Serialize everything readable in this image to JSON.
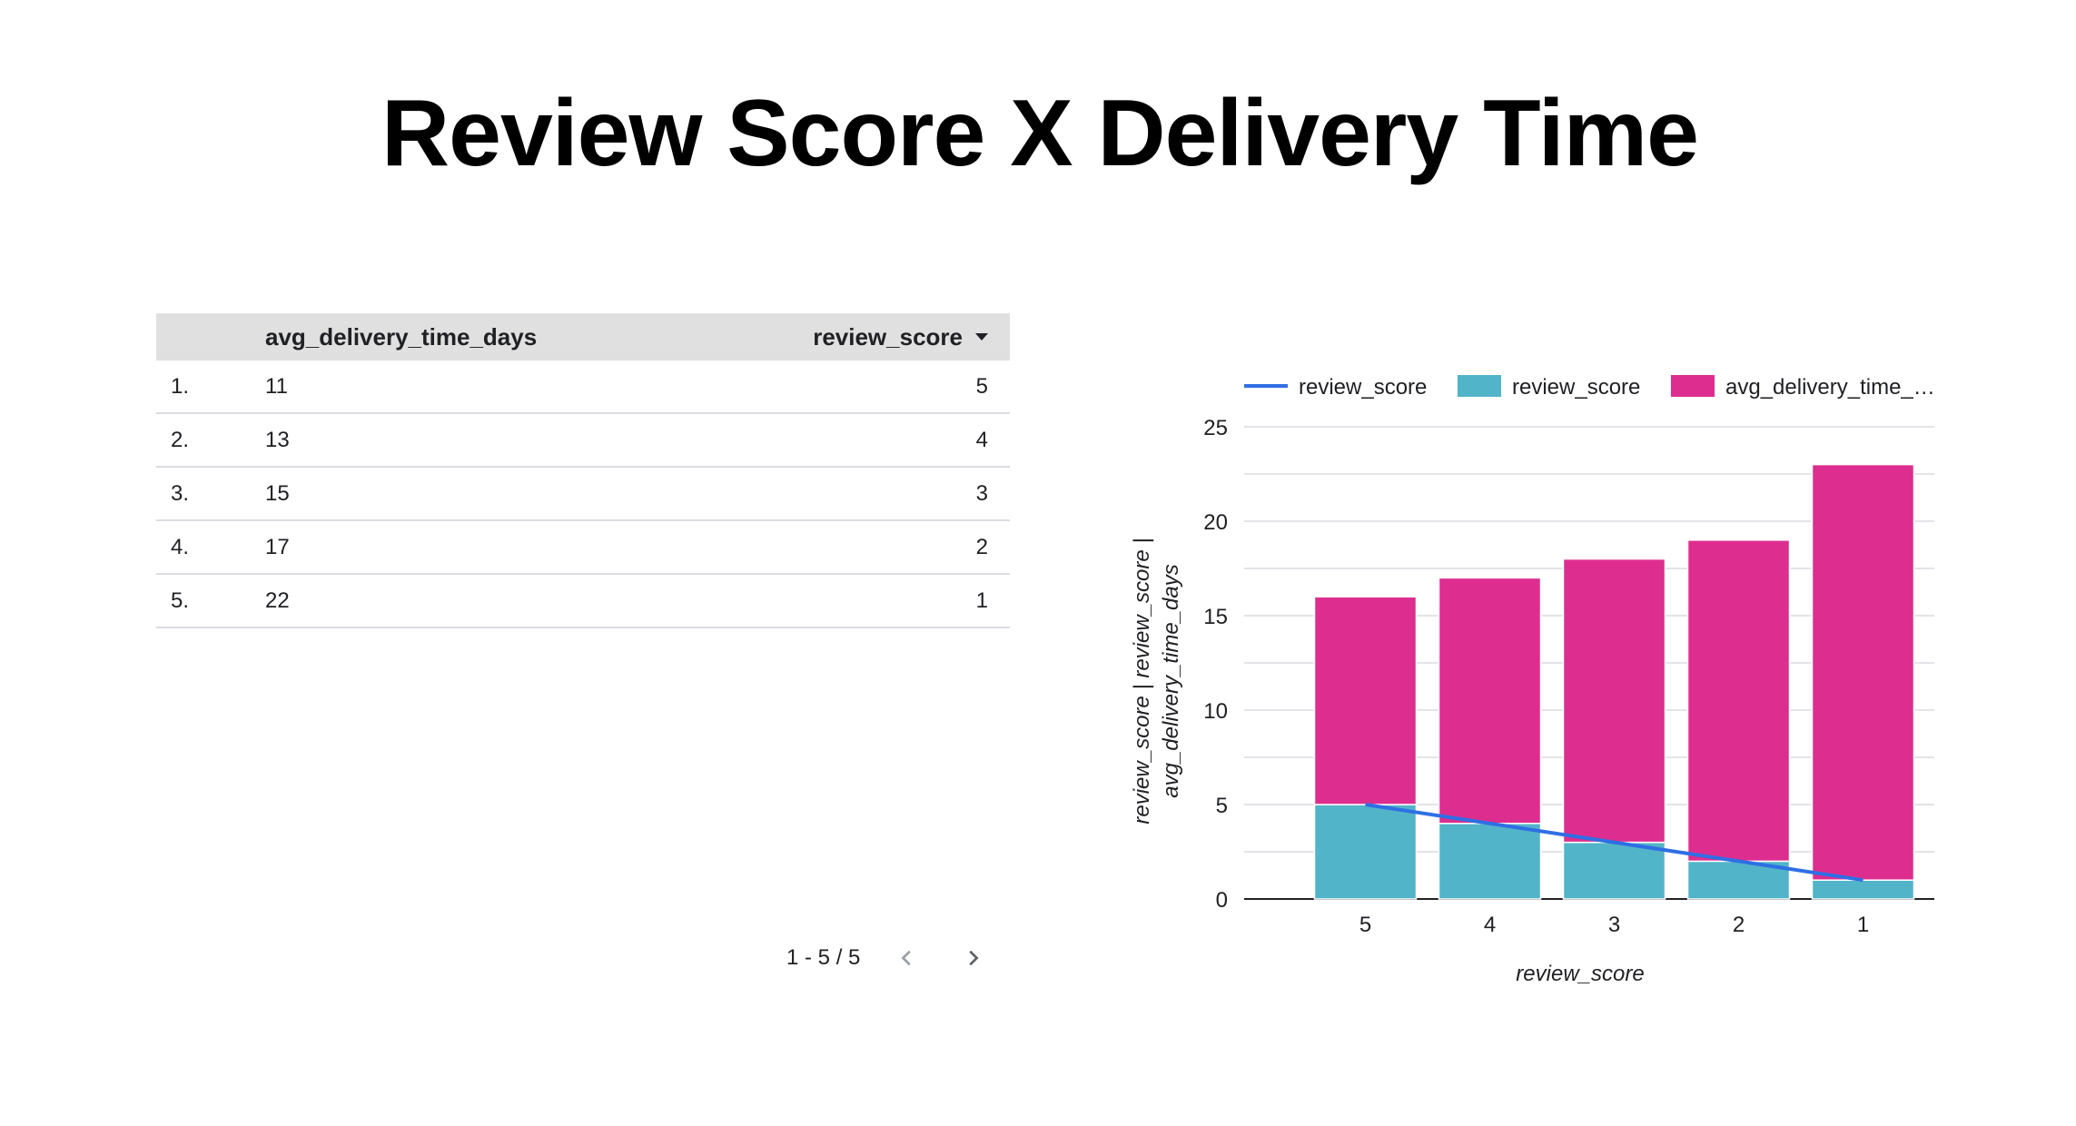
{
  "title": "Review Score X Delivery Time",
  "table": {
    "columns": [
      "avg_delivery_time_days",
      "review_score"
    ],
    "rows": [
      {
        "idx": "1.",
        "avg_delivery_time_days": "11",
        "review_score": "5"
      },
      {
        "idx": "2.",
        "avg_delivery_time_days": "13",
        "review_score": "4"
      },
      {
        "idx": "3.",
        "avg_delivery_time_days": "15",
        "review_score": "3"
      },
      {
        "idx": "4.",
        "avg_delivery_time_days": "17",
        "review_score": "2"
      },
      {
        "idx": "5.",
        "avg_delivery_time_days": "22",
        "review_score": "1"
      }
    ],
    "sort_icon": "sort-descending-icon",
    "pagination": {
      "label": "1 - 5 / 5",
      "prev_icon": "chevron-left-icon",
      "next_icon": "chevron-right-icon"
    }
  },
  "chart_data": {
    "type": "bar",
    "stacked": true,
    "categories": [
      "5",
      "4",
      "3",
      "2",
      "1"
    ],
    "series": [
      {
        "name": "review_score",
        "kind": "line",
        "values": [
          5,
          4,
          3,
          2,
          1
        ],
        "color": "#2f6fe4"
      },
      {
        "name": "review_score",
        "kind": "bar",
        "values": [
          5,
          4,
          3,
          2,
          1
        ],
        "color": "#52b4c8"
      },
      {
        "name": "avg_delivery_time_…",
        "kind": "bar",
        "values": [
          11,
          13,
          15,
          17,
          22
        ],
        "color": "#dd2e8f"
      }
    ],
    "xlabel": "review_score",
    "ylabel": [
      "review_score | review_score |",
      "avg_delivery_time_days"
    ],
    "yticks": [
      0,
      5,
      10,
      15,
      20,
      25
    ],
    "ylim": [
      0,
      25
    ],
    "grid": true,
    "legend": "top"
  }
}
